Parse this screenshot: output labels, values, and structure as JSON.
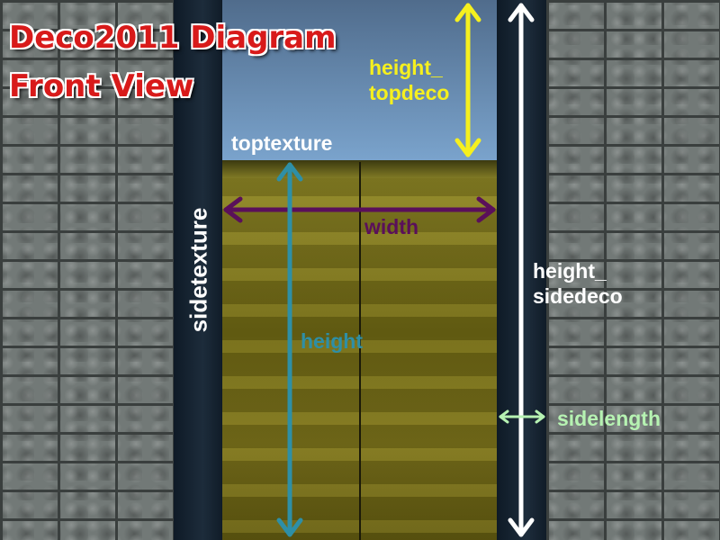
{
  "title": {
    "line1": "Deco2011 Diagram",
    "line2": "Front View"
  },
  "labels": {
    "height_topdeco": "height_\ntopdeco",
    "toptexture": "toptexture",
    "width": "width",
    "height": "height",
    "sidetexture": "sidetexture",
    "height_sidedeco": "height_\nsidedeco",
    "sidelength": "sidelength"
  },
  "colors": {
    "title_text": "#d81a1a",
    "title_outline": "#ffffff",
    "height_topdeco_arrow": "#f6f01e",
    "width_arrow": "#5a0f5a",
    "height_arrow": "#2e8fa6",
    "height_sidedeco_arrow": "#ffffff",
    "sidelength_arrow": "#b6f2b2",
    "top_deco_fill": "#7aa3cc",
    "door_fill": "#7d751e",
    "side_strip_fill": "#1d2c3b",
    "wall_fill": "#727977"
  }
}
